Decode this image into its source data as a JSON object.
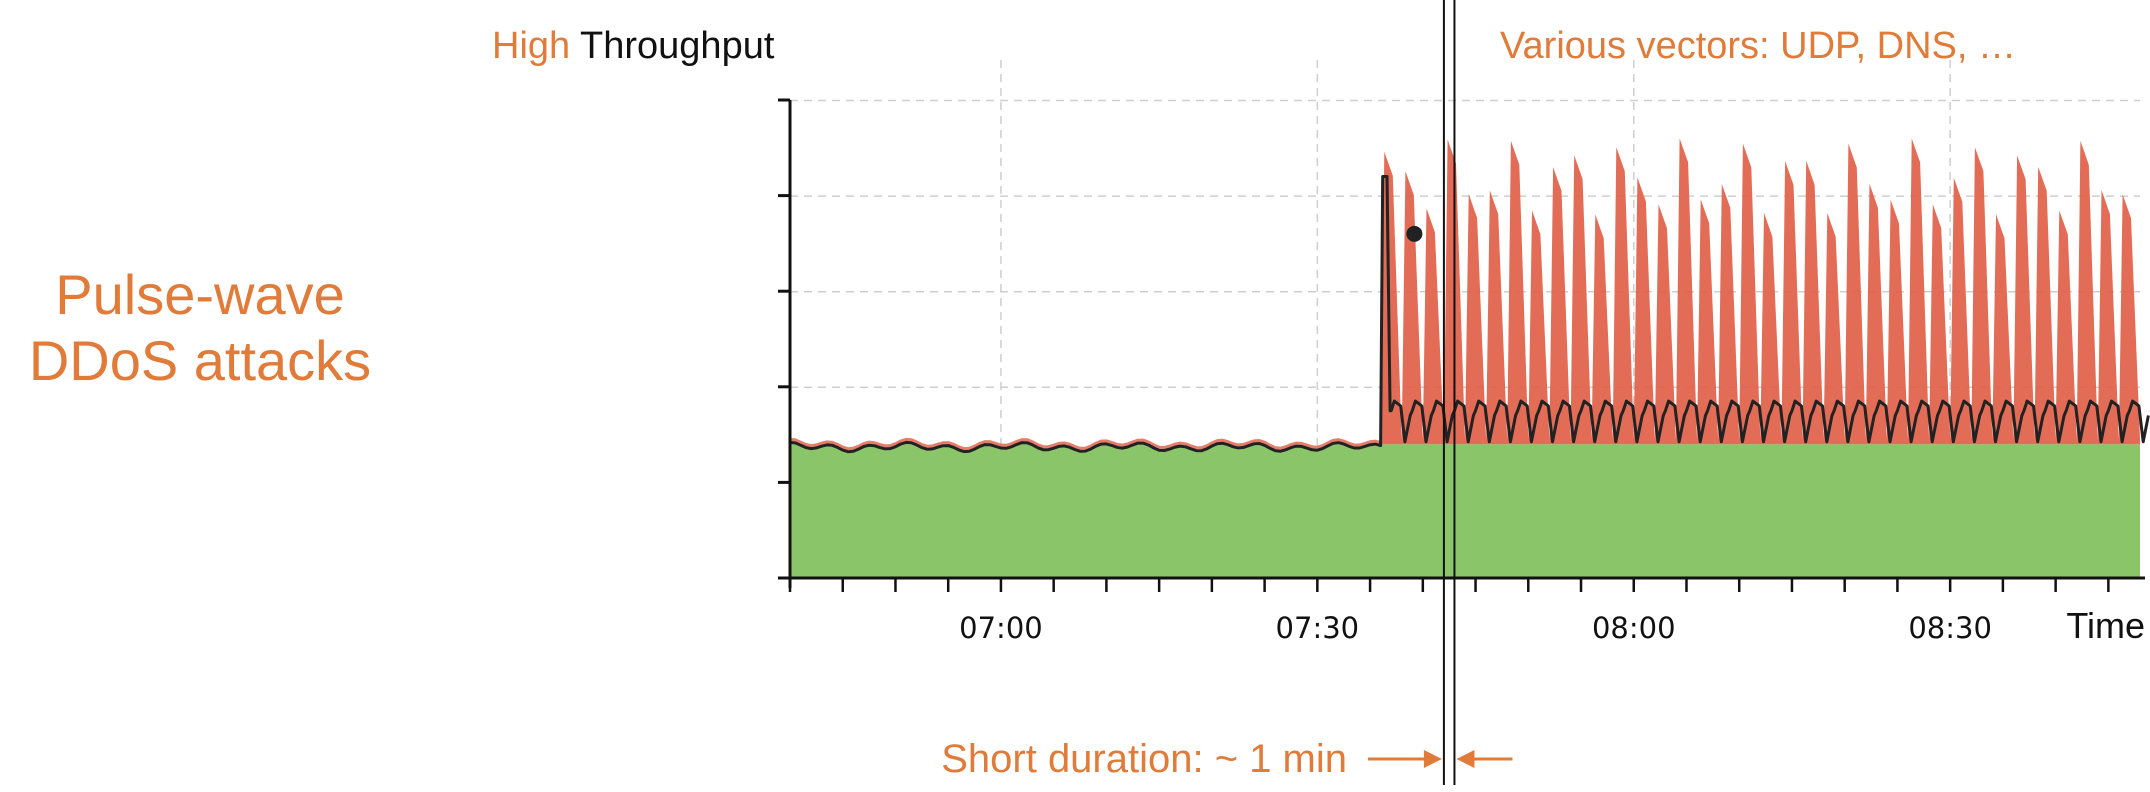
{
  "slide": {
    "title_line1": "Pulse-wave",
    "title_line2": "DDoS attacks"
  },
  "chart_data": {
    "type": "area",
    "title_prefix": "High",
    "title_suffix": "Throughput",
    "vectors_note": "Various vectors: UDP, DNS, …",
    "xlabel": "Time",
    "ylabel": "",
    "x_ticks": [
      "07:00",
      "07:30",
      "08:00",
      "08:30"
    ],
    "x_range": [
      "06:40",
      "08:48"
    ],
    "y_ticks_labeled": false,
    "grid": true,
    "series": [
      {
        "name": "",
        "color": "#8BC56A",
        "kind": "baseline-area",
        "level": 0.28
      },
      {
        "name": "",
        "color": "#E05C45",
        "kind": "pulse-area",
        "attack_start": "07:36",
        "pulse_period_min": 2,
        "peak_level_range": [
          0.76,
          0.92
        ]
      },
      {
        "name": "",
        "color": "#222222",
        "kind": "line"
      }
    ],
    "annotation": {
      "text": "Short duration: ~ 1 min",
      "start": "07:42",
      "end": "07:43"
    }
  }
}
